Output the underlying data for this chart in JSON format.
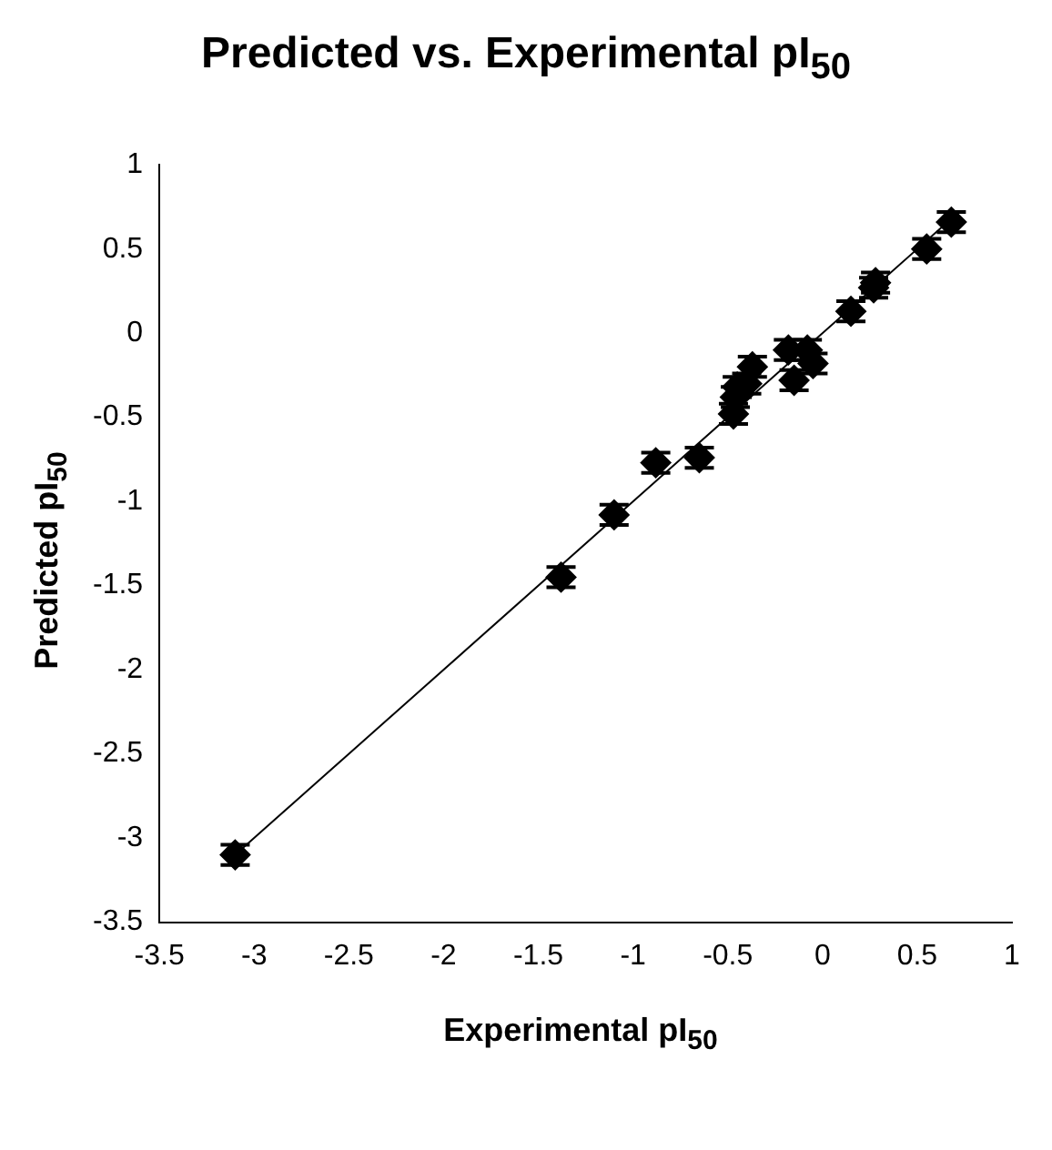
{
  "chart_data": {
    "type": "scatter",
    "title": "Predicted vs. Experimental pI$_{50}$",
    "xlabel": "Experimental pI$_{50}$",
    "ylabel": "Predicted pI$_{50}$",
    "x": [
      -3.1,
      -1.38,
      -1.1,
      -0.88,
      -0.65,
      -0.47,
      -0.46,
      -0.45,
      -0.4,
      -0.37,
      -0.18,
      -0.15,
      -0.08,
      -0.05,
      0.15,
      0.27,
      0.28,
      0.55,
      0.68
    ],
    "series": [
      {
        "color": "#000000",
        "marker": "diamond",
        "values": [
          -3.1,
          -1.45,
          -1.08,
          -0.77,
          -0.74,
          -0.48,
          -0.38,
          -0.32,
          -0.3,
          -0.2,
          -0.1,
          -0.28,
          -0.1,
          -0.18,
          0.13,
          0.27,
          0.3,
          0.5,
          0.66
        ],
        "errors": [
          0.06,
          0.06,
          0.06,
          0.06,
          0.06,
          0.06,
          0.06,
          0.06,
          0.06,
          0.06,
          0.06,
          0.06,
          0.06,
          0.06,
          0.06,
          0.06,
          0.06,
          0.06,
          0.06
        ]
      },
      {
        "type": "line",
        "color": "#000000",
        "x": [
          -3.1,
          0.72
        ],
        "values": [
          -3.1,
          0.72
        ]
      }
    ],
    "xlim": [
      -3.5,
      1
    ],
    "ylim": [
      -3.5,
      1
    ],
    "xticks": [
      -3.5,
      -3,
      -2.5,
      -2,
      -1.5,
      -1,
      -0.5,
      0,
      0.5,
      1
    ],
    "yticks": [
      -3.5,
      -3,
      -2.5,
      -2,
      -1.5,
      -1,
      -0.5,
      0,
      0.5,
      1
    ],
    "grid": false,
    "legend": false
  }
}
